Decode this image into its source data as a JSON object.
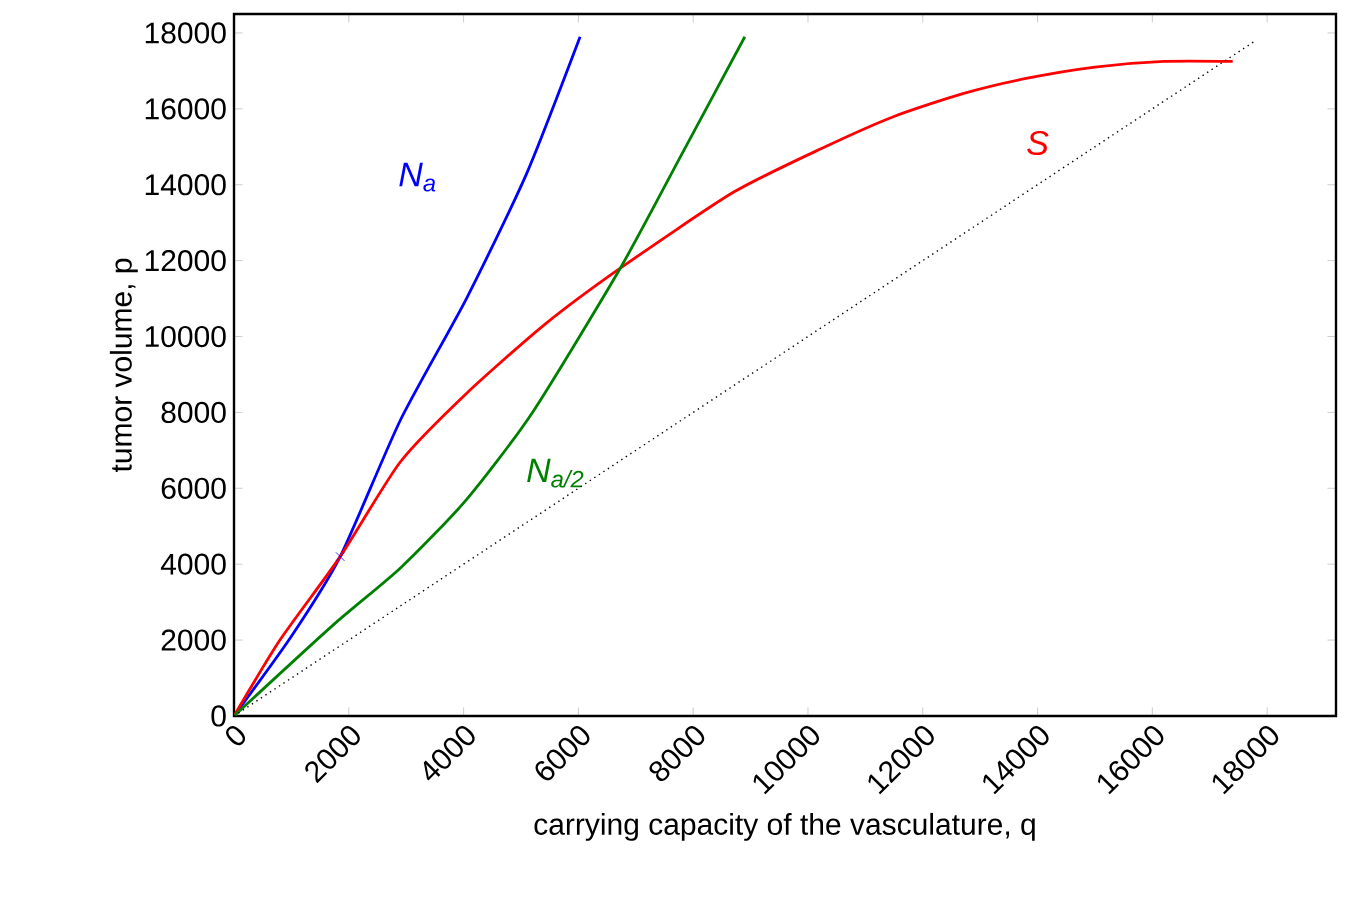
{
  "chart_data": {
    "type": "line",
    "xlabel": "carrying capacity of the vasculature, q",
    "ylabel": "tumor volume, p",
    "xlim": [
      0,
      19200
    ],
    "ylim": [
      0,
      18500
    ],
    "xticks": [
      0,
      2000,
      4000,
      6000,
      8000,
      10000,
      12000,
      14000,
      16000,
      18000
    ],
    "yticks": [
      0,
      2000,
      4000,
      6000,
      8000,
      10000,
      12000,
      14000,
      16000,
      18000
    ],
    "series": [
      {
        "name": "N$_{a}$",
        "color": "#0000ff",
        "x": [
          0,
          1000,
          1850,
          2900,
          4050,
          5100,
          6030
        ],
        "values": [
          0,
          2100,
          4200,
          7800,
          11000,
          14300,
          17900
        ]
      },
      {
        "name": "S",
        "color": "#ff0000",
        "x": [
          0,
          800,
          1850,
          2900,
          4050,
          5400,
          6730,
          8700,
          10300,
          11500,
          12700,
          13800,
          15000,
          16200,
          17400
        ],
        "values": [
          0,
          2000,
          4200,
          6700,
          8500,
          10300,
          11800,
          13800,
          15000,
          15800,
          16400,
          16800,
          17100,
          17250,
          17250
        ]
      },
      {
        "name": "N$_{a/2}$",
        "color": "#008000",
        "x": [
          0,
          1730,
          2900,
          4050,
          5200,
          6730,
          7800,
          8900
        ],
        "values": [
          0,
          2400,
          3900,
          5700,
          8000,
          11800,
          14800,
          17900
        ]
      },
      {
        "color": "#000000",
        "line_style": "dotted",
        "x": [
          0,
          17800
        ],
        "values": [
          0,
          17800
        ]
      },
      {
        "type": "scatter",
        "marker": "cross",
        "color": "#0000ff",
        "x": [
          1850
        ],
        "values": [
          4200
        ]
      }
    ]
  }
}
